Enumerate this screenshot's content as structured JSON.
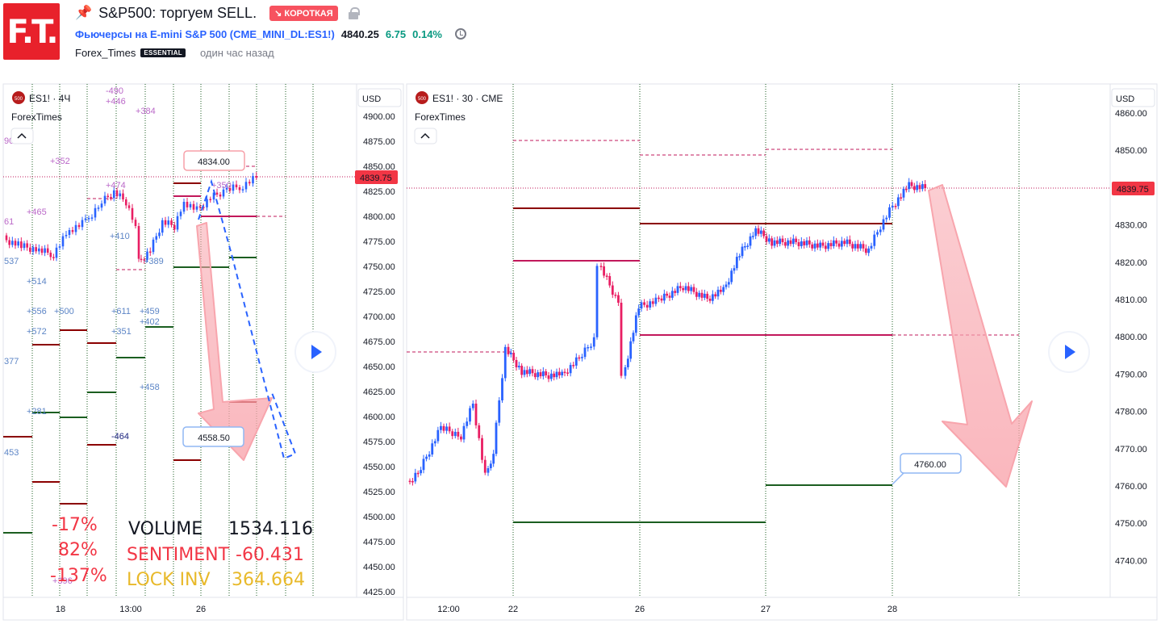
{
  "header": {
    "logo_text": "F.T.",
    "logo_sub": "",
    "title": "S&P500: торгуем SELL.",
    "badge": "↘ КОРОТКАЯ",
    "symbol_link": "Фьючерсы на E-mini S&P 500 (CME_MINI_DL:ES1!)",
    "last_price": "4840.25",
    "change": "6.75",
    "change_pct": "0.14%",
    "author": "Forex_Times",
    "author_badge": "ESSENTIAL",
    "time_ago": "один час назад"
  },
  "colors": {
    "up": "#2962ff",
    "down": "#e91e63",
    "accent_red": "#f23645",
    "level_dark": "#8b0000",
    "level_green": "#1b5e20",
    "level_pink": "#c2185b"
  },
  "left_chart": {
    "symbol": "ES1! · 4Ч",
    "source": "ForexTimes",
    "currency": "USD",
    "price_axis": [
      "4900.00",
      "4875.00",
      "4850.00",
      "4825.00",
      "4800.00",
      "4775.00",
      "4750.00",
      "4725.00",
      "4700.00",
      "4675.00",
      "4650.00",
      "4625.00",
      "4600.00",
      "4575.00",
      "4550.00",
      "4525.00",
      "4500.00",
      "4475.00",
      "4450.00",
      "4425.00"
    ],
    "price_tag": "4839.75",
    "time_axis": [
      "18",
      "13:00",
      "26"
    ],
    "label_target_top": "4834.00",
    "label_target_bottom": "4558.50",
    "volume_labels": [
      "+352",
      "+465",
      "+410",
      "+514",
      "+556",
      "+500",
      "+611",
      "+459",
      "+402",
      "+572",
      "+351",
      "+458",
      "+281",
      "-464",
      "+384",
      "-490",
      "+446",
      "+474",
      "+389",
      "+350",
      "453",
      "377",
      "537",
      "61",
      "90",
      "+396"
    ],
    "pct_labels": [
      "-17%",
      "82%",
      "-137%"
    ],
    "stats": {
      "volume_label": "VOLUME",
      "volume_value": "1534.116",
      "sentiment_label": "SENTIMENT",
      "sentiment_value": "-60.431",
      "lockinv_label": "LOCK INV",
      "lockinv_value": "364.664"
    }
  },
  "right_chart": {
    "symbol": "ES1! · 30 · CME",
    "source": "ForexTimes",
    "currency": "USD",
    "price_axis": [
      "4860.00",
      "4850.00",
      "4840.00",
      "4830.00",
      "4820.00",
      "4810.00",
      "4800.00",
      "4790.00",
      "4780.00",
      "4770.00",
      "4760.00",
      "4750.00",
      "4740.00"
    ],
    "price_tag": "4839.75",
    "time_axis": [
      "12:00",
      "22",
      "26",
      "27",
      "28"
    ],
    "label_target": "4760.00"
  }
}
